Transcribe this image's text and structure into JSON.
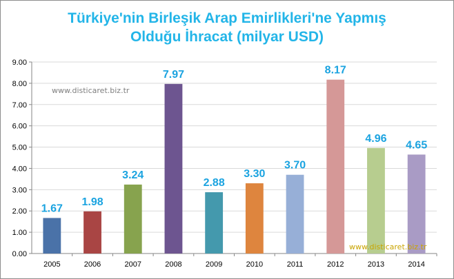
{
  "colors": {
    "title": "#23b5e8",
    "data_label": "#1aa3e0",
    "axis": "#868686",
    "grid": "#d9d9d9",
    "watermark_top": "#7f7f7f",
    "watermark_bottom": "#c9a400",
    "bars": [
      "#4a72a8",
      "#a94544",
      "#87a34e",
      "#6d5590",
      "#4499ad",
      "#de853e",
      "#97afd7",
      "#d59897",
      "#b7cd8f",
      "#a99bc5"
    ]
  },
  "watermarks": {
    "top": "www.disticaret.biz.tr",
    "bottom": "www.disticaret.biz.tr"
  },
  "chart_data": {
    "type": "bar",
    "title_lines": [
      "Türkiye'nin Birleşik Arap Emirlikleri'ne Yapmış",
      "Olduğu İhracat (milyar USD)"
    ],
    "categories": [
      "2005",
      "2006",
      "2007",
      "2008",
      "2009",
      "2010",
      "2011",
      "2012",
      "2013",
      "2014"
    ],
    "values": [
      1.67,
      1.98,
      3.24,
      7.97,
      2.88,
      3.3,
      3.7,
      8.17,
      4.96,
      4.65
    ],
    "data_labels": [
      "1.67",
      "1.98",
      "3.24",
      "7.97",
      "2.88",
      "3.30",
      "3.70",
      "8.17",
      "4.96",
      "4.65"
    ],
    "y_ticks": [
      "0.00",
      "1.00",
      "2.00",
      "3.00",
      "4.00",
      "5.00",
      "6.00",
      "7.00",
      "8.00",
      "9.00"
    ],
    "ylim": [
      0,
      9
    ],
    "grid": true,
    "legend": "none",
    "xlabel": "",
    "ylabel": ""
  }
}
